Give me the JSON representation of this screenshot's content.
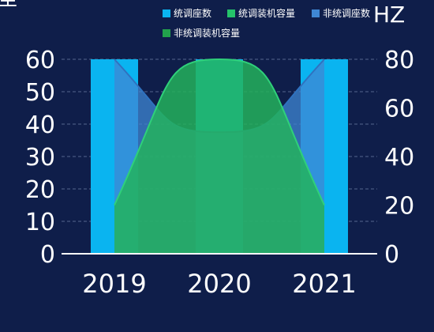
{
  "chart_data": {
    "type": "bar",
    "categories": [
      "2019",
      "2020",
      "2021"
    ],
    "yaxis_left": {
      "label": "座",
      "ylim": [
        0,
        60
      ],
      "ticks": [
        0,
        10,
        20,
        30,
        40,
        50,
        60
      ]
    },
    "yaxis_right": {
      "label": "HZ",
      "ylim": [
        0,
        80
      ],
      "ticks": [
        0,
        20,
        40,
        60,
        80
      ]
    },
    "series": [
      {
        "name": "统调座数",
        "type": "bar",
        "axis": "left",
        "color": "#0ab4f0",
        "values": [
          60,
          60,
          60
        ]
      },
      {
        "name": "统调装机容量",
        "type": "area",
        "axis": "left",
        "color": "#25c36a",
        "values": [
          15,
          60,
          15
        ]
      },
      {
        "name": "非统调座数",
        "type": "area",
        "axis": "left",
        "color": "#3f87d4",
        "values": [
          60,
          37.5,
          60
        ]
      },
      {
        "name": "非统调装机容量",
        "type": "area",
        "axis": "left",
        "color": "#22a24c",
        "values": [
          15,
          60,
          15
        ]
      }
    ],
    "grid": true,
    "legend_position": "top-right"
  }
}
